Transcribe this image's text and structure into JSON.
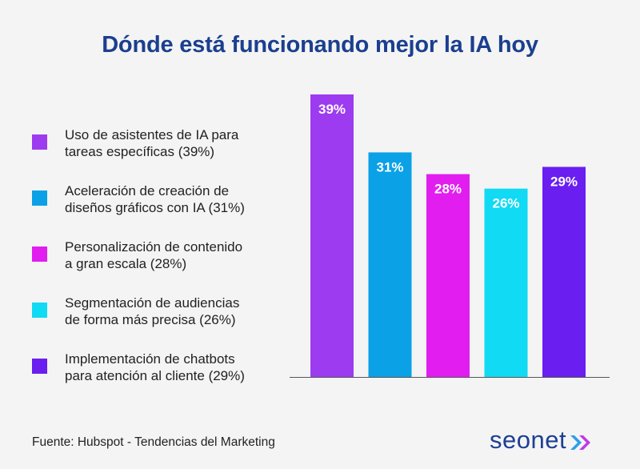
{
  "title": "Dónde está funcionando mejor la IA hoy",
  "source": "Fuente: Hubspot - Tendencias del Marketing",
  "brand": "seonet",
  "colors": {
    "title": "#1b3f8f",
    "brand_arrows": [
      "#2f9ee8",
      "#c03ae6"
    ]
  },
  "chart_data": {
    "type": "bar",
    "categories": [
      "Uso de asistentes de IA para\ntareas específicas (39%)",
      "Aceleración de creación de\ndiseños gráficos con IA (31%)",
      "Personalización de contenido\na gran escala (28%)",
      "Segmentación de audiencias\nde forma más precisa (26%)",
      "Implementación de chatbots\npara atención al cliente (29%)"
    ],
    "values": [
      39,
      31,
      28,
      26,
      29
    ],
    "value_labels": [
      "39%",
      "31%",
      "28%",
      "26%",
      "29%"
    ],
    "colors": [
      "#9d3bf0",
      "#0aa1e6",
      "#e21df0",
      "#10daf4",
      "#6a1ef0"
    ],
    "ylim": [
      0,
      39
    ],
    "grid": false,
    "legend_placement": "left"
  }
}
